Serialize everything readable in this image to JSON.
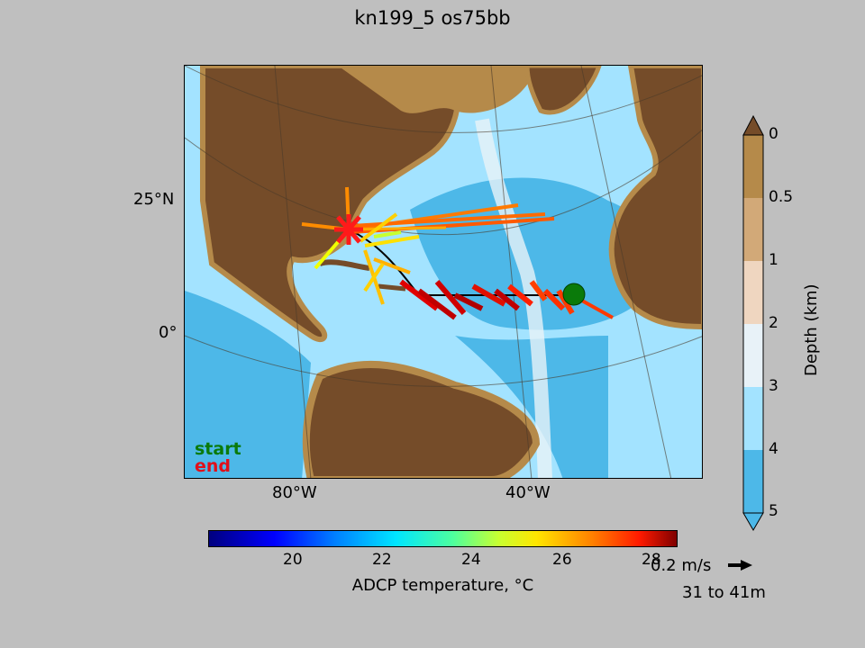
{
  "title": "kn199_5 os75bb",
  "map": {
    "lat_labels": [
      "25°N",
      "0°"
    ],
    "lon_labels": [
      "80°W",
      "40°W"
    ],
    "legend": {
      "start": "start",
      "end": "end",
      "start_color": "#0a7a0a",
      "end_color": "#e0101a"
    },
    "colors": {
      "land": "#754c29",
      "shelf": "#b58a4a",
      "deep": "#4db8e8",
      "mid": "#a3e3ff"
    }
  },
  "depth_colorbar": {
    "label": "Depth (km)",
    "ticks": [
      "0",
      "0.5",
      "1",
      "2",
      "3",
      "4",
      "5"
    ],
    "colors": [
      "#b58a4a",
      "#d2a978",
      "#efd6c0",
      "#e8f2f8",
      "#a3e3ff",
      "#4db8e8"
    ]
  },
  "temperature_colorbar": {
    "label": "ADCP temperature, °C",
    "ticks": [
      "20",
      "22",
      "24",
      "26",
      "28"
    ],
    "range": [
      18.2,
      28.5
    ]
  },
  "quiver_key": {
    "speed": "0.2 m/s",
    "depth_range": "31 to 41m"
  }
}
